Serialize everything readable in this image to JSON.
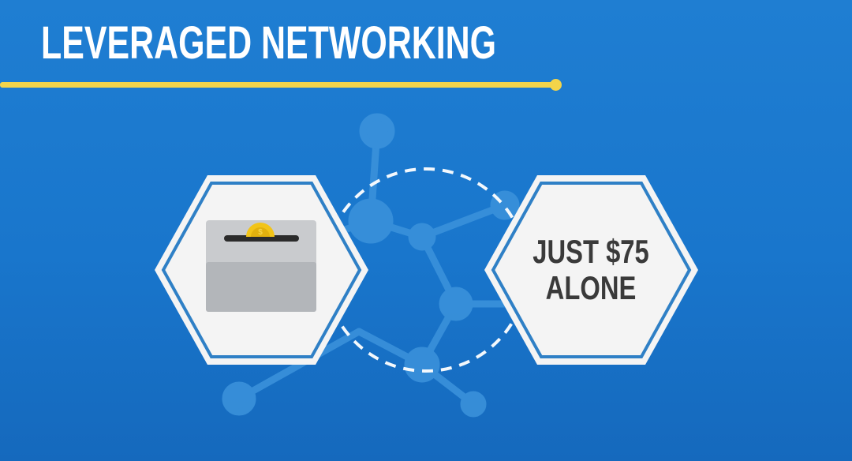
{
  "title": "LEVERAGED NETWORKING",
  "right_hexagon": {
    "line1": "JUST $75",
    "line2": "ALONE"
  },
  "colors": {
    "background": "#1c78cf",
    "accent_yellow": "#f3d44a",
    "hexagon_fill": "#f4f4f4",
    "hexagon_border": "#2f80c6",
    "network_faint": "#3c93dc",
    "coin": "#f2c418",
    "box_gray": "#b9bcc0"
  },
  "icons": [
    "donation-box-icon",
    "coin-icon",
    "network-graph-icon"
  ]
}
